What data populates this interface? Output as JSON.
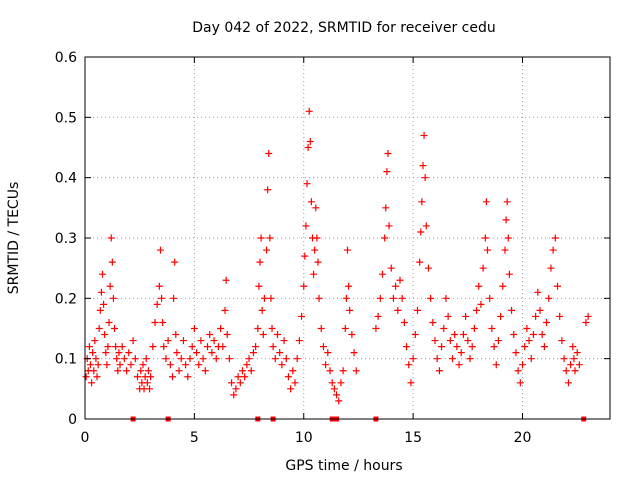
{
  "chart_data": {
    "type": "scatter",
    "title": "Day 042 of 2022, SRMTID for receiver cedu",
    "xlabel": "GPS time / hours",
    "ylabel": "SRMTID / TECUs",
    "xlim": [
      0,
      24
    ],
    "ylim": [
      0,
      0.6
    ],
    "x_ticks": [
      0,
      5,
      10,
      15,
      20
    ],
    "x_tick_labels": [
      "0",
      "5",
      "10",
      "15",
      "20"
    ],
    "y_ticks": [
      0,
      0.1,
      0.2,
      0.3,
      0.4,
      0.5,
      0.6
    ],
    "y_tick_labels": [
      "0",
      "0.1",
      "0.2",
      "0.3",
      "0.4",
      "0.5",
      "0.6"
    ],
    "grid": true,
    "marker": "plus",
    "color": "#ff0000",
    "series": [
      {
        "name": "SRMTID",
        "points": [
          [
            0.05,
            0.07
          ],
          [
            0.1,
            0.1
          ],
          [
            0.15,
            0.08
          ],
          [
            0.2,
            0.12
          ],
          [
            0.25,
            0.09
          ],
          [
            0.3,
            0.06
          ],
          [
            0.35,
            0.11
          ],
          [
            0.4,
            0.08
          ],
          [
            0.45,
            0.13
          ],
          [
            0.5,
            0.1
          ],
          [
            0.55,
            0.07
          ],
          [
            0.6,
            0.09
          ],
          [
            0.65,
            0.15
          ],
          [
            0.7,
            0.18
          ],
          [
            0.75,
            0.21
          ],
          [
            0.8,
            0.24
          ],
          [
            0.85,
            0.19
          ],
          [
            0.9,
            0.14
          ],
          [
            0.95,
            0.11
          ],
          [
            1.0,
            0.09
          ],
          [
            1.05,
            0.12
          ],
          [
            1.1,
            0.16
          ],
          [
            1.15,
            0.22
          ],
          [
            1.2,
            0.3
          ],
          [
            1.25,
            0.26
          ],
          [
            1.3,
            0.2
          ],
          [
            1.35,
            0.15
          ],
          [
            1.4,
            0.12
          ],
          [
            1.45,
            0.1
          ],
          [
            1.5,
            0.08
          ],
          [
            1.55,
            0.11
          ],
          [
            1.6,
            0.09
          ],
          [
            1.7,
            0.12
          ],
          [
            1.8,
            0.1
          ],
          [
            1.9,
            0.08
          ],
          [
            2.0,
            0.11
          ],
          [
            2.1,
            0.09
          ],
          [
            2.2,
            0.13
          ],
          [
            2.3,
            0.1
          ],
          [
            2.4,
            0.07
          ],
          [
            2.5,
            0.05
          ],
          [
            2.55,
            0.08
          ],
          [
            2.6,
            0.06
          ],
          [
            2.65,
            0.09
          ],
          [
            2.7,
            0.05
          ],
          [
            2.75,
            0.07
          ],
          [
            2.8,
            0.1
          ],
          [
            2.85,
            0.06
          ],
          [
            2.9,
            0.08
          ],
          [
            2.95,
            0.05
          ],
          [
            3.0,
            0.07
          ],
          [
            3.1,
            0.12
          ],
          [
            3.2,
            0.16
          ],
          [
            3.3,
            0.19
          ],
          [
            3.4,
            0.22
          ],
          [
            3.45,
            0.28
          ],
          [
            3.5,
            0.2
          ],
          [
            3.55,
            0.16
          ],
          [
            3.6,
            0.12
          ],
          [
            3.7,
            0.1
          ],
          [
            3.8,
            0.13
          ],
          [
            3.9,
            0.09
          ],
          [
            4.0,
            0.07
          ],
          [
            4.05,
            0.2
          ],
          [
            4.1,
            0.26
          ],
          [
            4.15,
            0.14
          ],
          [
            4.2,
            0.11
          ],
          [
            4.3,
            0.08
          ],
          [
            4.4,
            0.1
          ],
          [
            4.5,
            0.13
          ],
          [
            4.6,
            0.09
          ],
          [
            4.7,
            0.07
          ],
          [
            4.8,
            0.1
          ],
          [
            4.9,
            0.12
          ],
          [
            5.0,
            0.15
          ],
          [
            5.1,
            0.11
          ],
          [
            5.2,
            0.09
          ],
          [
            5.3,
            0.13
          ],
          [
            5.4,
            0.1
          ],
          [
            5.5,
            0.08
          ],
          [
            5.6,
            0.12
          ],
          [
            5.7,
            0.14
          ],
          [
            5.8,
            0.11
          ],
          [
            5.9,
            0.13
          ],
          [
            6.0,
            0.1
          ],
          [
            6.1,
            0.12
          ],
          [
            6.2,
            0.15
          ],
          [
            6.3,
            0.12
          ],
          [
            6.4,
            0.18
          ],
          [
            6.45,
            0.23
          ],
          [
            6.5,
            0.14
          ],
          [
            6.6,
            0.1
          ],
          [
            6.7,
            0.06
          ],
          [
            6.8,
            0.04
          ],
          [
            6.9,
            0.05
          ],
          [
            7.0,
            0.07
          ],
          [
            7.1,
            0.06
          ],
          [
            7.2,
            0.08
          ],
          [
            7.3,
            0.07
          ],
          [
            7.4,
            0.09
          ],
          [
            7.5,
            0.1
          ],
          [
            7.6,
            0.08
          ],
          [
            7.7,
            0.11
          ],
          [
            7.8,
            0.12
          ],
          [
            7.9,
            0.15
          ],
          [
            7.95,
            0.22
          ],
          [
            8.0,
            0.26
          ],
          [
            8.05,
            0.3
          ],
          [
            8.1,
            0.18
          ],
          [
            8.15,
            0.14
          ],
          [
            8.2,
            0.2
          ],
          [
            8.3,
            0.28
          ],
          [
            8.35,
            0.38
          ],
          [
            8.4,
            0.44
          ],
          [
            8.45,
            0.3
          ],
          [
            8.5,
            0.2
          ],
          [
            8.55,
            0.15
          ],
          [
            8.6,
            0.12
          ],
          [
            8.7,
            0.1
          ],
          [
            8.8,
            0.14
          ],
          [
            8.9,
            0.11
          ],
          [
            9.0,
            0.09
          ],
          [
            9.1,
            0.13
          ],
          [
            9.2,
            0.1
          ],
          [
            9.3,
            0.07
          ],
          [
            9.4,
            0.05
          ],
          [
            9.5,
            0.08
          ],
          [
            9.6,
            0.06
          ],
          [
            9.7,
            0.1
          ],
          [
            9.8,
            0.13
          ],
          [
            9.9,
            0.17
          ],
          [
            10.0,
            0.22
          ],
          [
            10.05,
            0.27
          ],
          [
            10.1,
            0.32
          ],
          [
            10.15,
            0.39
          ],
          [
            10.2,
            0.45
          ],
          [
            10.25,
            0.51
          ],
          [
            10.3,
            0.46
          ],
          [
            10.35,
            0.36
          ],
          [
            10.4,
            0.3
          ],
          [
            10.45,
            0.24
          ],
          [
            10.5,
            0.28
          ],
          [
            10.55,
            0.35
          ],
          [
            10.6,
            0.3
          ],
          [
            10.65,
            0.26
          ],
          [
            10.7,
            0.2
          ],
          [
            10.8,
            0.15
          ],
          [
            10.9,
            0.12
          ],
          [
            11.0,
            0.09
          ],
          [
            11.1,
            0.11
          ],
          [
            11.2,
            0.08
          ],
          [
            11.3,
            0.06
          ],
          [
            11.4,
            0.05
          ],
          [
            11.5,
            0.04
          ],
          [
            11.6,
            0.03
          ],
          [
            11.7,
            0.06
          ],
          [
            11.8,
            0.08
          ],
          [
            11.9,
            0.15
          ],
          [
            11.95,
            0.2
          ],
          [
            12.0,
            0.28
          ],
          [
            12.05,
            0.22
          ],
          [
            12.1,
            0.18
          ],
          [
            12.2,
            0.14
          ],
          [
            12.3,
            0.11
          ],
          [
            12.4,
            0.08
          ],
          [
            13.3,
            0.15
          ],
          [
            13.4,
            0.17
          ],
          [
            13.5,
            0.2
          ],
          [
            13.6,
            0.24
          ],
          [
            13.7,
            0.3
          ],
          [
            13.75,
            0.35
          ],
          [
            13.8,
            0.41
          ],
          [
            13.85,
            0.44
          ],
          [
            13.9,
            0.32
          ],
          [
            14.0,
            0.25
          ],
          [
            14.1,
            0.2
          ],
          [
            14.2,
            0.22
          ],
          [
            14.3,
            0.18
          ],
          [
            14.4,
            0.23
          ],
          [
            14.5,
            0.2
          ],
          [
            14.6,
            0.16
          ],
          [
            14.7,
            0.12
          ],
          [
            14.8,
            0.09
          ],
          [
            14.9,
            0.06
          ],
          [
            15.0,
            0.1
          ],
          [
            15.1,
            0.14
          ],
          [
            15.2,
            0.18
          ],
          [
            15.3,
            0.26
          ],
          [
            15.35,
            0.31
          ],
          [
            15.4,
            0.36
          ],
          [
            15.45,
            0.42
          ],
          [
            15.5,
            0.47
          ],
          [
            15.55,
            0.4
          ],
          [
            15.6,
            0.32
          ],
          [
            15.7,
            0.25
          ],
          [
            15.8,
            0.2
          ],
          [
            15.9,
            0.16
          ],
          [
            16.0,
            0.13
          ],
          [
            16.1,
            0.1
          ],
          [
            16.2,
            0.08
          ],
          [
            16.3,
            0.12
          ],
          [
            16.4,
            0.15
          ],
          [
            16.5,
            0.2
          ],
          [
            16.6,
            0.17
          ],
          [
            16.7,
            0.13
          ],
          [
            16.8,
            0.1
          ],
          [
            16.9,
            0.14
          ],
          [
            17.0,
            0.12
          ],
          [
            17.1,
            0.09
          ],
          [
            17.2,
            0.11
          ],
          [
            17.3,
            0.14
          ],
          [
            17.4,
            0.17
          ],
          [
            17.5,
            0.13
          ],
          [
            17.6,
            0.1
          ],
          [
            17.7,
            0.12
          ],
          [
            17.8,
            0.15
          ],
          [
            17.9,
            0.18
          ],
          [
            18.0,
            0.22
          ],
          [
            18.1,
            0.19
          ],
          [
            18.2,
            0.25
          ],
          [
            18.3,
            0.3
          ],
          [
            18.35,
            0.36
          ],
          [
            18.4,
            0.28
          ],
          [
            18.5,
            0.2
          ],
          [
            18.6,
            0.15
          ],
          [
            18.7,
            0.12
          ],
          [
            18.8,
            0.09
          ],
          [
            18.9,
            0.13
          ],
          [
            19.0,
            0.17
          ],
          [
            19.1,
            0.22
          ],
          [
            19.2,
            0.28
          ],
          [
            19.25,
            0.33
          ],
          [
            19.3,
            0.36
          ],
          [
            19.35,
            0.3
          ],
          [
            19.4,
            0.24
          ],
          [
            19.5,
            0.18
          ],
          [
            19.6,
            0.14
          ],
          [
            19.7,
            0.11
          ],
          [
            19.8,
            0.08
          ],
          [
            19.9,
            0.06
          ],
          [
            20.0,
            0.09
          ],
          [
            20.1,
            0.12
          ],
          [
            20.2,
            0.15
          ],
          [
            20.3,
            0.13
          ],
          [
            20.4,
            0.1
          ],
          [
            20.5,
            0.14
          ],
          [
            20.6,
            0.17
          ],
          [
            20.7,
            0.21
          ],
          [
            20.8,
            0.18
          ],
          [
            20.9,
            0.14
          ],
          [
            21.0,
            0.12
          ],
          [
            21.1,
            0.16
          ],
          [
            21.2,
            0.2
          ],
          [
            21.3,
            0.25
          ],
          [
            21.4,
            0.28
          ],
          [
            21.5,
            0.3
          ],
          [
            21.6,
            0.22
          ],
          [
            21.7,
            0.17
          ],
          [
            21.8,
            0.13
          ],
          [
            21.9,
            0.1
          ],
          [
            22.0,
            0.08
          ],
          [
            22.1,
            0.06
          ],
          [
            22.2,
            0.09
          ],
          [
            22.3,
            0.12
          ],
          [
            22.35,
            0.1
          ],
          [
            22.4,
            0.08
          ],
          [
            22.5,
            0.11
          ],
          [
            22.6,
            0.09
          ],
          [
            22.9,
            0.16
          ],
          [
            23.0,
            0.17
          ]
        ]
      }
    ],
    "data_gaps": [
      2.2,
      3.8,
      7.9,
      8.6,
      11.3,
      11.4,
      11.5,
      13.3,
      22.8
    ]
  }
}
